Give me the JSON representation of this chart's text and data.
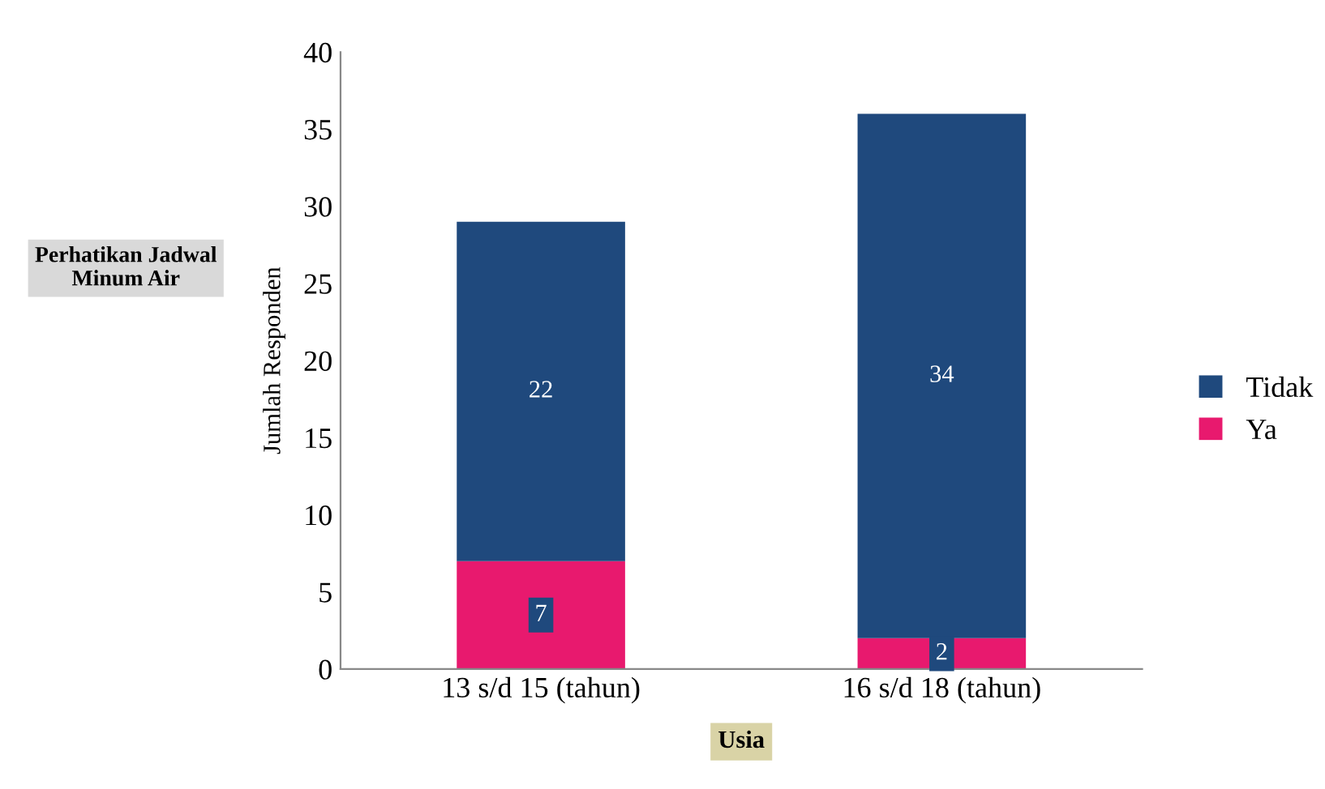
{
  "chart_data": {
    "type": "bar",
    "stacked": true,
    "title": "Perhatikan Jadwal Minum Air",
    "xlabel": "Usia",
    "ylabel": "Jumlah Responden",
    "categories": [
      "13 s/d 15 (tahun)",
      "16 s/d 18 (tahun)"
    ],
    "series": [
      {
        "name": "Ya",
        "color": "#e8196e",
        "values": [
          7,
          2
        ]
      },
      {
        "name": "Tidak",
        "color": "#1f497d",
        "values": [
          22,
          34
        ]
      }
    ],
    "ylim": [
      0,
      40
    ],
    "yticks": [
      0,
      5,
      10,
      15,
      20,
      25,
      30,
      35,
      40
    ],
    "grid": false,
    "legend": "right",
    "data_labels": true
  }
}
